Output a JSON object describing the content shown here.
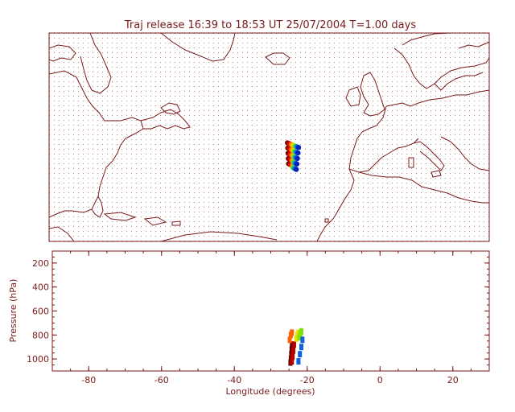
{
  "title": "Traj release 16:39 to 18:53 UT 25/07/2004    T=1.00 days",
  "colors": {
    "frame": "#7a1a1a",
    "coast": "#7a1a1a",
    "grid_dot": "#7a1a1a",
    "background": "#ffffff",
    "trajectory_scale": [
      "#6b0000",
      "#b00000",
      "#e01000",
      "#ff6000",
      "#ffb000",
      "#e8e000",
      "#80e000",
      "#10c0a0",
      "#1060e0",
      "#0020c0"
    ]
  },
  "map_panel": {
    "lon_range": [
      -90,
      30
    ],
    "lat_range": [
      10,
      65
    ],
    "grid": "dotted",
    "coastlines": true,
    "trajectory_cluster": {
      "lon": [
        -25,
        -21
      ],
      "lat": [
        29,
        36
      ]
    }
  },
  "pressure_panel": {
    "ylabel": "Pressure  (hPa)",
    "xlabel": "Longitude  (degrees)",
    "y_ticks": [
      "200",
      "400",
      "600",
      "800",
      "1000"
    ],
    "x_ticks": [
      "-80",
      "-60",
      "-40",
      "-20",
      "0",
      "20"
    ],
    "y_range": [
      100,
      1100
    ],
    "x_range": [
      -90,
      30
    ],
    "y_inverted": true
  },
  "chart_data": {
    "type": "scatter",
    "title": "Traj release 16:39 to 18:53 UT 25/07/2004    T=1.00 days",
    "xlabel": "Longitude  (degrees)",
    "ylabel": "Pressure  (hPa)",
    "xlim": [
      -90,
      30
    ],
    "ylim": [
      1100,
      100
    ],
    "series": [
      {
        "color": "#6b0000",
        "x": [
          -24.6,
          -24.5,
          -24.4,
          -24.3,
          -24.2
        ],
        "y": [
          1030,
          1000,
          960,
          920,
          880
        ]
      },
      {
        "color": "#b00000",
        "x": [
          -24.2,
          -24.0,
          -23.8,
          -23.6
        ],
        "y": [
          1020,
          980,
          930,
          880
        ]
      },
      {
        "color": "#ff6000",
        "x": [
          -24.8,
          -24.5,
          -24.2
        ],
        "y": [
          840,
          800,
          780
        ]
      },
      {
        "color": "#e8e000",
        "x": [
          -23.0,
          -22.7,
          -22.4
        ],
        "y": [
          830,
          800,
          780
        ]
      },
      {
        "color": "#80e000",
        "x": [
          -22.2,
          -21.9,
          -21.6
        ],
        "y": [
          820,
          790,
          770
        ]
      },
      {
        "color": "#1060e0",
        "x": [
          -22.4,
          -22.0,
          -21.6,
          -21.3
        ],
        "y": [
          1020,
          960,
          900,
          840
        ]
      }
    ]
  }
}
